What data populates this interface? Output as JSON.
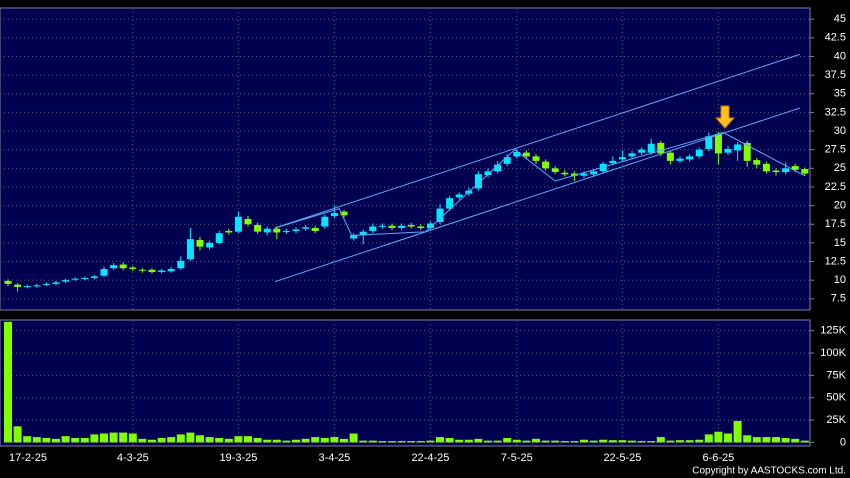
{
  "chart_data": [
    {
      "type": "candlestick",
      "categories": [
        "17-2-25",
        null,
        null,
        null,
        null,
        null,
        null,
        null,
        null,
        null,
        null,
        null,
        null,
        "4-3-25",
        null,
        null,
        null,
        null,
        null,
        null,
        null,
        null,
        null,
        null,
        "19-3-25",
        null,
        null,
        null,
        null,
        null,
        null,
        null,
        null,
        null,
        "3-4-25",
        null,
        null,
        null,
        null,
        null,
        null,
        null,
        null,
        null,
        "22-4-25",
        null,
        null,
        null,
        null,
        null,
        null,
        null,
        null,
        "7-5-25",
        null,
        null,
        null,
        null,
        null,
        null,
        null,
        null,
        null,
        null,
        "22-5-25",
        null,
        null,
        null,
        null,
        null,
        null,
        null,
        null,
        null,
        "6-6-25",
        null,
        null,
        null,
        null,
        null,
        null,
        null,
        null,
        null
      ],
      "open": [
        9.9,
        9.4,
        9.1,
        9.2,
        9.4,
        9.5,
        9.8,
        10.1,
        10.2,
        10.3,
        10.6,
        11.6,
        12.1,
        11.7,
        11.4,
        11.4,
        11.1,
        11.2,
        11.6,
        12.8,
        15.4,
        14.4,
        15.0,
        16.6,
        16.5,
        18.2,
        17.4,
        16.4,
        16.9,
        16.5,
        16.6,
        16.9,
        17.0,
        17.2,
        18.6,
        19.2,
        15.6,
        16.0,
        16.6,
        17.3,
        17.3,
        17.0,
        17.4,
        17.2,
        17.0,
        17.8,
        19.6,
        21.1,
        21.6,
        22.3,
        24.1,
        24.6,
        25.6,
        26.6,
        27.1,
        26.6,
        25.9,
        25.0,
        24.4,
        24.3,
        24.0,
        24.2,
        24.6,
        25.7,
        26.2,
        26.6,
        27.1,
        27.1,
        28.4,
        27.1,
        26.0,
        26.2,
        26.6,
        27.6,
        29.6,
        27.1,
        27.4,
        28.4,
        26.1,
        25.6,
        24.7,
        24.5,
        25.3,
        24.9
      ],
      "high": [
        10.1,
        9.6,
        9.4,
        9.5,
        9.7,
        9.9,
        10.2,
        10.4,
        10.5,
        10.7,
        11.8,
        12.3,
        12.4,
        11.9,
        11.6,
        11.6,
        11.5,
        11.8,
        13.2,
        17.0,
        15.8,
        15.3,
        16.6,
        16.9,
        19.2,
        18.6,
        17.7,
        17.2,
        17.2,
        16.9,
        17.1,
        17.4,
        17.3,
        18.8,
        20.0,
        19.4,
        16.3,
        16.8,
        17.6,
        17.6,
        17.6,
        17.6,
        17.7,
        17.5,
        17.9,
        20.2,
        21.3,
        21.8,
        22.4,
        24.6,
        25.0,
        26.0,
        26.9,
        27.6,
        27.4,
        26.9,
        26.2,
        25.3,
        24.8,
        24.6,
        24.6,
        24.9,
        25.9,
        26.6,
        27.4,
        27.3,
        27.8,
        29.0,
        28.7,
        27.4,
        26.6,
        26.9,
        27.8,
        29.8,
        29.9,
        28.0,
        28.5,
        28.7,
        26.4,
        25.9,
        25.0,
        25.8,
        25.6,
        25.1
      ],
      "low": [
        9.2,
        8.5,
        8.9,
        9.0,
        9.2,
        9.3,
        9.6,
        9.9,
        10.0,
        10.1,
        10.4,
        11.4,
        11.3,
        11.2,
        11.0,
        10.9,
        10.9,
        11.0,
        11.4,
        12.6,
        14.0,
        14.1,
        14.8,
        16.1,
        16.3,
        17.2,
        16.2,
        16.0,
        15.5,
        16.2,
        16.3,
        16.6,
        16.3,
        16.9,
        18.3,
        18.4,
        15.3,
        14.8,
        16.3,
        16.9,
        16.7,
        16.7,
        16.9,
        16.7,
        16.7,
        17.5,
        19.3,
        20.8,
        21.3,
        22.0,
        23.8,
        24.3,
        25.3,
        26.3,
        26.3,
        25.6,
        24.7,
        24.2,
        23.9,
        23.3,
        23.7,
        23.9,
        24.3,
        25.4,
        25.9,
        26.3,
        26.8,
        26.8,
        26.6,
        25.5,
        25.7,
        25.9,
        26.3,
        27.3,
        25.5,
        26.8,
        26.0,
        25.2,
        25.0,
        24.3,
        24.0,
        24.2,
        24.5,
        24.0
      ],
      "close": [
        9.5,
        9.1,
        9.2,
        9.3,
        9.5,
        9.7,
        10.0,
        10.2,
        10.3,
        10.5,
        11.5,
        12.0,
        11.6,
        11.5,
        11.3,
        11.1,
        11.3,
        11.5,
        12.6,
        15.5,
        14.5,
        15.0,
        16.3,
        16.4,
        18.5,
        17.5,
        16.5,
        16.9,
        16.4,
        16.6,
        16.8,
        17.1,
        16.6,
        18.5,
        19.0,
        18.7,
        16.0,
        16.5,
        17.2,
        17.3,
        17.0,
        17.3,
        17.2,
        17.0,
        17.6,
        19.6,
        21.0,
        21.5,
        22.0,
        24.2,
        24.6,
        25.5,
        26.5,
        27.2,
        26.6,
        26.0,
        25.0,
        24.5,
        24.2,
        24.0,
        24.3,
        24.6,
        25.6,
        26.0,
        26.5,
        27.0,
        27.5,
        28.3,
        27.0,
        26.0,
        26.3,
        26.6,
        27.5,
        29.3,
        27.0,
        27.6,
        28.2,
        26.0,
        25.5,
        24.6,
        24.5,
        25.0,
        24.8,
        24.3
      ],
      "up_color": "#00e8ff",
      "down_color": "#80ff00",
      "ylim": [
        6,
        46.5
      ],
      "yticks": [
        7.5,
        10,
        12.5,
        15,
        17.5,
        20,
        22.5,
        25,
        27.5,
        30,
        32.5,
        35,
        37.5,
        40,
        42.5,
        45
      ],
      "grid": true,
      "lines": [
        {
          "color": "#5aaaff",
          "x": [
            27.8,
            82.5
          ],
          "y": [
            9.8,
            33.1
          ]
        },
        {
          "color": "#5aaaff",
          "x": [
            27.8,
            82.5
          ],
          "y": [
            17.0,
            40.3
          ]
        },
        {
          "color": "#5aaaff",
          "x": [
            27.8,
            34.5,
            35.8,
            43.5,
            52.8,
            57.0,
            74.5,
            83.0
          ],
          "y": [
            17.0,
            19.6,
            16.0,
            16.5,
            27.5,
            23.3,
            29.8,
            24.0
          ]
        }
      ]
    },
    {
      "type": "bar",
      "values": [
        135000,
        18000,
        7000,
        6000,
        5000,
        4000,
        7000,
        5000,
        5000,
        9000,
        10000,
        11000,
        11000,
        10000,
        4000,
        3000,
        5000,
        6000,
        9000,
        11000,
        8000,
        6000,
        5000,
        4000,
        7000,
        7000,
        5000,
        3000,
        3000,
        2000,
        3000,
        4000,
        6000,
        5000,
        6000,
        4000,
        10000,
        2000,
        2000,
        1500,
        1500,
        1500,
        1500,
        1500,
        2000,
        6000,
        5000,
        3000,
        3000,
        4000,
        2000,
        2000,
        5000,
        3000,
        2000,
        4000,
        2000,
        2000,
        1500,
        1500,
        3000,
        2000,
        3000,
        2500,
        2500,
        2000,
        1500,
        1500,
        6000,
        2000,
        2500,
        2500,
        3000,
        9000,
        12000,
        10000,
        24000,
        8000,
        6000,
        6000,
        6000,
        5000,
        4000,
        2000
      ],
      "color": "#80ff00",
      "ylim": [
        -4000,
        137000
      ],
      "yticks": [
        0,
        {
          "value": 25000,
          "label": "25K"
        },
        {
          "value": 50000,
          "label": "50K"
        },
        {
          "value": 75000,
          "label": "75K"
        },
        {
          "value": 100000,
          "label": "100K"
        },
        {
          "value": 125000,
          "label": "125K"
        }
      ],
      "grid": true
    }
  ],
  "footer": "Copyright by AASTOCKS.com Ltd."
}
